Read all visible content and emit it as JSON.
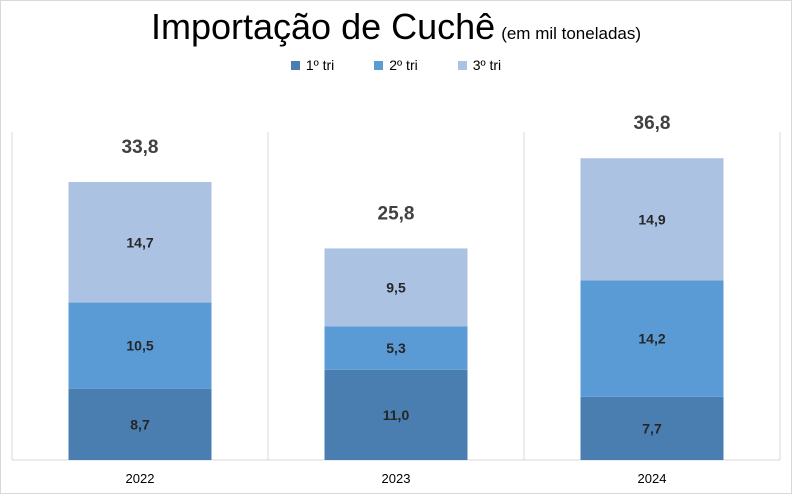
{
  "chart_data": {
    "type": "bar",
    "stacked": true,
    "title": "Importação de Cuchê",
    "subtitle": "(em mil toneladas)",
    "categories": [
      "2022",
      "2023",
      "2024"
    ],
    "series": [
      {
        "name": "1º tri",
        "values": [
          8.7,
          11.0,
          7.7
        ],
        "labels": [
          "8,7",
          "11,0",
          "7,7"
        ],
        "color": "#4a7eb0"
      },
      {
        "name": "2º tri",
        "values": [
          10.5,
          5.3,
          14.2
        ],
        "labels": [
          "10,5",
          "5,3",
          "14,2"
        ],
        "color": "#5b9bd5"
      },
      {
        "name": "3º tri",
        "values": [
          14.7,
          9.5,
          14.9
        ],
        "labels": [
          "14,7",
          "9,5",
          "14,9"
        ],
        "color": "#abc2e2"
      }
    ],
    "totals": [
      33.8,
      25.8,
      36.8
    ],
    "total_labels": [
      "33,8",
      "25,8",
      "36,8"
    ],
    "ylim": [
      0,
      40
    ],
    "legend_position": "top",
    "grid": false
  }
}
